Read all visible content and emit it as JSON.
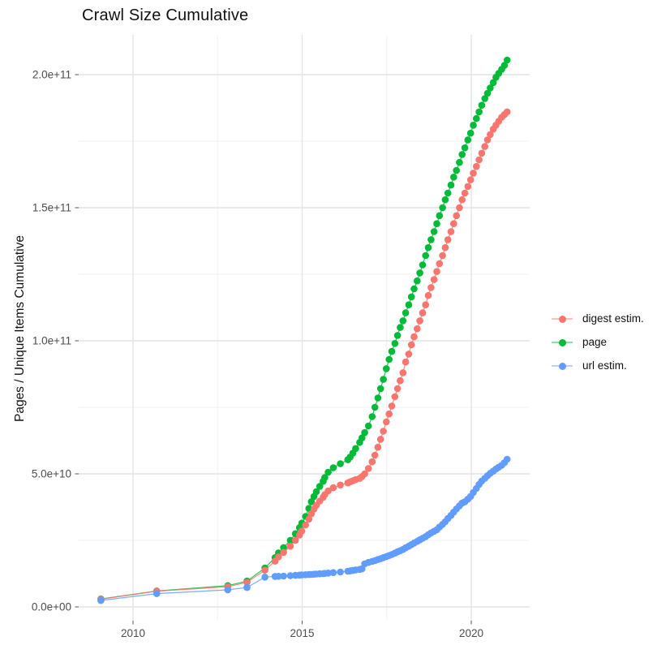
{
  "chart_data": {
    "type": "scatter",
    "title": "Crawl Size Cumulative",
    "xlabel": "",
    "ylabel": "Pages / Unique Items Cumulative",
    "value_unit": "1e9 (values below are billions of items)",
    "grid": true,
    "legend_position": "right",
    "xlim": [
      2008.4,
      2021.75
    ],
    "ylim": [
      -5,
      215
    ],
    "x_ticks": {
      "major": [
        2010,
        2015,
        2020
      ],
      "minor": [
        2012.5,
        2017.5
      ],
      "labels": [
        "2010",
        "2015",
        "2020"
      ]
    },
    "y_ticks": {
      "major": [
        0,
        50,
        100,
        150,
        200
      ],
      "minor": [
        25,
        75,
        125,
        175
      ],
      "labels": [
        "0.0e+00",
        "5.0e+10",
        "1.0e+11",
        "1.5e+11",
        "2.0e+11"
      ]
    },
    "z_order": [
      "page",
      "digest estim.",
      "url estim."
    ],
    "series": [
      {
        "name": "digest estim.",
        "color": "#F8766D",
        "points": [
          [
            2009.05,
            2.9
          ],
          [
            2010.7,
            5.9
          ],
          [
            2012.8,
            7.6
          ],
          [
            2013.37,
            9.2
          ],
          [
            2013.9,
            13.8
          ],
          [
            2014.2,
            17.2
          ],
          [
            2014.3,
            18.8
          ],
          [
            2014.45,
            20.5
          ],
          [
            2014.65,
            22.8
          ],
          [
            2014.8,
            25.0
          ],
          [
            2014.92,
            27.0
          ],
          [
            2014.99,
            28.5
          ],
          [
            2015.1,
            30.8
          ],
          [
            2015.2,
            33.0
          ],
          [
            2015.27,
            35.0
          ],
          [
            2015.35,
            36.8
          ],
          [
            2015.42,
            38.2
          ],
          [
            2015.52,
            39.8
          ],
          [
            2015.62,
            41.2
          ],
          [
            2015.67,
            42.2
          ],
          [
            2015.77,
            43.6
          ],
          [
            2015.92,
            44.8
          ],
          [
            2016.13,
            45.8
          ],
          [
            2016.35,
            46.6
          ],
          [
            2016.42,
            47.0
          ],
          [
            2016.5,
            47.4
          ],
          [
            2016.58,
            47.8
          ],
          [
            2016.7,
            48.3
          ],
          [
            2016.77,
            49.0
          ],
          [
            2016.85,
            50.0
          ],
          [
            2016.96,
            52.0
          ],
          [
            2017.07,
            54.5
          ],
          [
            2017.15,
            57.0
          ],
          [
            2017.24,
            60.0
          ],
          [
            2017.32,
            63.0
          ],
          [
            2017.4,
            66.0
          ],
          [
            2017.49,
            69.5
          ],
          [
            2017.57,
            72.5
          ],
          [
            2017.65,
            75.5
          ],
          [
            2017.74,
            79.0
          ],
          [
            2017.82,
            82.0
          ],
          [
            2017.9,
            85.0
          ],
          [
            2017.98,
            88.0
          ],
          [
            2018.06,
            92.0
          ],
          [
            2018.15,
            95.0
          ],
          [
            2018.23,
            98.5
          ],
          [
            2018.31,
            101.5
          ],
          [
            2018.4,
            104.5
          ],
          [
            2018.48,
            107.5
          ],
          [
            2018.56,
            110.5
          ],
          [
            2018.65,
            113.5
          ],
          [
            2018.73,
            117.0
          ],
          [
            2018.81,
            120.0
          ],
          [
            2018.9,
            123.0
          ],
          [
            2018.98,
            126.0
          ],
          [
            2019.06,
            129.0
          ],
          [
            2019.15,
            132.0
          ],
          [
            2019.23,
            135.0
          ],
          [
            2019.31,
            138.0
          ],
          [
            2019.4,
            141.0
          ],
          [
            2019.48,
            144.0
          ],
          [
            2019.56,
            147.0
          ],
          [
            2019.65,
            150.0
          ],
          [
            2019.73,
            153.0
          ],
          [
            2019.81,
            155.5
          ],
          [
            2019.9,
            158.0
          ],
          [
            2019.98,
            160.5
          ],
          [
            2020.06,
            163.0
          ],
          [
            2020.15,
            165.5
          ],
          [
            2020.23,
            168.0
          ],
          [
            2020.31,
            170.5
          ],
          [
            2020.4,
            173.0
          ],
          [
            2020.48,
            175.5
          ],
          [
            2020.56,
            177.5
          ],
          [
            2020.65,
            179.5
          ],
          [
            2020.73,
            181.0
          ],
          [
            2020.81,
            182.5
          ],
          [
            2020.9,
            184.0
          ],
          [
            2020.98,
            185.0
          ],
          [
            2021.06,
            186.0
          ]
        ]
      },
      {
        "name": "page",
        "color": "#00BA38",
        "points": [
          [
            2009.05,
            3.0
          ],
          [
            2010.7,
            6.0
          ],
          [
            2012.8,
            8.0
          ],
          [
            2013.37,
            9.7
          ],
          [
            2013.9,
            14.6
          ],
          [
            2014.2,
            18.5
          ],
          [
            2014.3,
            20.3
          ],
          [
            2014.45,
            22.3
          ],
          [
            2014.65,
            25.0
          ],
          [
            2014.8,
            27.5
          ],
          [
            2014.92,
            29.8
          ],
          [
            2014.99,
            31.5
          ],
          [
            2015.1,
            34.0
          ],
          [
            2015.2,
            37.0
          ],
          [
            2015.27,
            39.5
          ],
          [
            2015.35,
            41.5
          ],
          [
            2015.42,
            43.3
          ],
          [
            2015.52,
            45.3
          ],
          [
            2015.62,
            47.2
          ],
          [
            2015.67,
            48.6
          ],
          [
            2015.77,
            50.6
          ],
          [
            2015.92,
            52.3
          ],
          [
            2016.13,
            53.8
          ],
          [
            2016.35,
            55.3
          ],
          [
            2016.42,
            56.3
          ],
          [
            2016.5,
            57.8
          ],
          [
            2016.58,
            59.5
          ],
          [
            2016.7,
            61.8
          ],
          [
            2016.77,
            63.5
          ],
          [
            2016.85,
            65.5
          ],
          [
            2016.96,
            68.0
          ],
          [
            2017.07,
            71.5
          ],
          [
            2017.15,
            75.0
          ],
          [
            2017.24,
            78.5
          ],
          [
            2017.32,
            82.0
          ],
          [
            2017.4,
            85.5
          ],
          [
            2017.49,
            89.5
          ],
          [
            2017.57,
            93.0
          ],
          [
            2017.65,
            96.0
          ],
          [
            2017.74,
            99.0
          ],
          [
            2017.82,
            102.0
          ],
          [
            2017.9,
            105.0
          ],
          [
            2017.98,
            107.5
          ],
          [
            2018.06,
            110.5
          ],
          [
            2018.15,
            113.5
          ],
          [
            2018.23,
            116.5
          ],
          [
            2018.31,
            119.5
          ],
          [
            2018.4,
            122.5
          ],
          [
            2018.48,
            125.5
          ],
          [
            2018.56,
            128.5
          ],
          [
            2018.65,
            132.0
          ],
          [
            2018.73,
            135.0
          ],
          [
            2018.81,
            138.0
          ],
          [
            2018.9,
            141.0
          ],
          [
            2018.98,
            144.0
          ],
          [
            2019.06,
            147.0
          ],
          [
            2019.15,
            150.0
          ],
          [
            2019.23,
            153.0
          ],
          [
            2019.31,
            155.5
          ],
          [
            2019.4,
            158.5
          ],
          [
            2019.48,
            161.5
          ],
          [
            2019.56,
            164.0
          ],
          [
            2019.65,
            167.0
          ],
          [
            2019.73,
            170.0
          ],
          [
            2019.81,
            172.5
          ],
          [
            2019.9,
            175.5
          ],
          [
            2019.98,
            178.0
          ],
          [
            2020.06,
            181.0
          ],
          [
            2020.15,
            183.5
          ],
          [
            2020.23,
            186.0
          ],
          [
            2020.31,
            188.5
          ],
          [
            2020.4,
            191.0
          ],
          [
            2020.48,
            193.0
          ],
          [
            2020.56,
            195.0
          ],
          [
            2020.65,
            197.0
          ],
          [
            2020.73,
            199.0
          ],
          [
            2020.81,
            200.5
          ],
          [
            2020.9,
            202.0
          ],
          [
            2020.98,
            203.5
          ],
          [
            2021.06,
            205.5
          ]
        ]
      },
      {
        "name": "url estim.",
        "color": "#619CFF",
        "points": [
          [
            2009.05,
            2.4
          ],
          [
            2010.7,
            5.0
          ],
          [
            2012.8,
            6.4
          ],
          [
            2013.37,
            7.3
          ],
          [
            2013.9,
            11.2
          ],
          [
            2014.2,
            11.45
          ],
          [
            2014.3,
            11.5
          ],
          [
            2014.45,
            11.6
          ],
          [
            2014.65,
            11.75
          ],
          [
            2014.8,
            11.85
          ],
          [
            2014.92,
            11.95
          ],
          [
            2014.99,
            12.0
          ],
          [
            2015.1,
            12.1
          ],
          [
            2015.2,
            12.15
          ],
          [
            2015.27,
            12.2
          ],
          [
            2015.35,
            12.3
          ],
          [
            2015.42,
            12.35
          ],
          [
            2015.52,
            12.45
          ],
          [
            2015.62,
            12.5
          ],
          [
            2015.67,
            12.6
          ],
          [
            2015.77,
            12.7
          ],
          [
            2015.92,
            12.9
          ],
          [
            2016.13,
            13.1
          ],
          [
            2016.35,
            13.4
          ],
          [
            2016.42,
            13.55
          ],
          [
            2016.5,
            13.7
          ],
          [
            2016.58,
            13.9
          ],
          [
            2016.7,
            14.1
          ],
          [
            2016.77,
            14.3
          ],
          [
            2016.85,
            16.2
          ],
          [
            2016.96,
            16.7
          ],
          [
            2017.07,
            17.1
          ],
          [
            2017.15,
            17.4
          ],
          [
            2017.24,
            17.8
          ],
          [
            2017.32,
            18.1
          ],
          [
            2017.4,
            18.5
          ],
          [
            2017.49,
            18.9
          ],
          [
            2017.57,
            19.3
          ],
          [
            2017.65,
            19.7
          ],
          [
            2017.74,
            20.2
          ],
          [
            2017.82,
            20.7
          ],
          [
            2017.9,
            21.1
          ],
          [
            2017.98,
            21.6
          ],
          [
            2018.06,
            22.2
          ],
          [
            2018.15,
            22.8
          ],
          [
            2018.23,
            23.4
          ],
          [
            2018.31,
            24.0
          ],
          [
            2018.4,
            24.6
          ],
          [
            2018.48,
            25.2
          ],
          [
            2018.56,
            25.8
          ],
          [
            2018.65,
            26.4
          ],
          [
            2018.73,
            27.1
          ],
          [
            2018.81,
            27.8
          ],
          [
            2018.9,
            28.4
          ],
          [
            2018.98,
            29.0
          ],
          [
            2019.06,
            30.0
          ],
          [
            2019.15,
            31.0
          ],
          [
            2019.23,
            32.0
          ],
          [
            2019.31,
            33.2
          ],
          [
            2019.4,
            34.4
          ],
          [
            2019.48,
            35.6
          ],
          [
            2019.56,
            36.8
          ],
          [
            2019.65,
            38.0
          ],
          [
            2019.73,
            39.0
          ],
          [
            2019.81,
            39.5
          ],
          [
            2019.9,
            40.5
          ],
          [
            2019.98,
            41.5
          ],
          [
            2020.06,
            43.0
          ],
          [
            2020.15,
            44.5
          ],
          [
            2020.23,
            46.0
          ],
          [
            2020.31,
            47.3
          ],
          [
            2020.4,
            48.3
          ],
          [
            2020.48,
            49.3
          ],
          [
            2020.56,
            50.2
          ],
          [
            2020.65,
            51.0
          ],
          [
            2020.73,
            51.8
          ],
          [
            2020.81,
            52.5
          ],
          [
            2020.9,
            53.2
          ],
          [
            2020.98,
            54.2
          ],
          [
            2021.06,
            55.5
          ]
        ]
      }
    ]
  },
  "style": {
    "grid_major_color": "#e4e4e4",
    "grid_minor_color": "#f1f1f1",
    "tick_color": "#555555",
    "tick_label_color": "#4d4d4d",
    "text_color": "#111111"
  }
}
